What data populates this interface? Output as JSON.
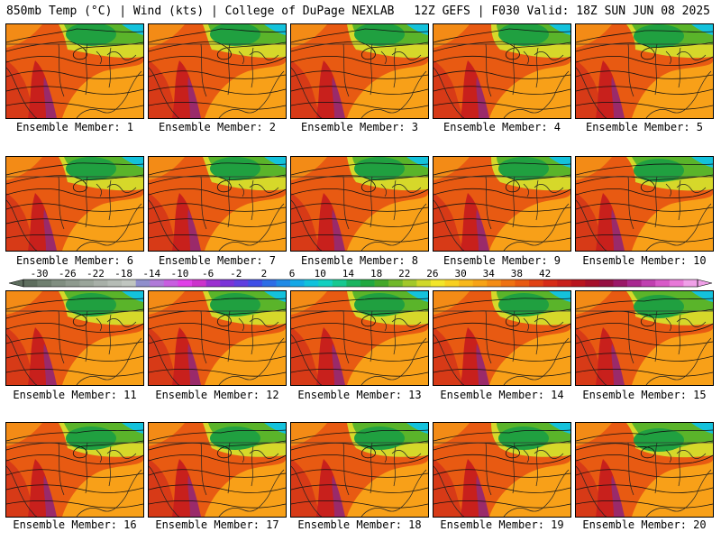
{
  "header": {
    "left": "850mb Temp (°C) | Wind (kts) | College of DuPage NEXLAB",
    "right": "12Z GEFS | F030 Valid: 18Z SUN JUN 08 2025"
  },
  "panels": [
    {
      "member": 1,
      "caption": "Ensemble Member: 1"
    },
    {
      "member": 2,
      "caption": "Ensemble Member: 2"
    },
    {
      "member": 3,
      "caption": "Ensemble Member: 3"
    },
    {
      "member": 4,
      "caption": "Ensemble Member: 4"
    },
    {
      "member": 5,
      "caption": "Ensemble Member: 5"
    },
    {
      "member": 6,
      "caption": "Ensemble Member: 6"
    },
    {
      "member": 7,
      "caption": "Ensemble Member: 7"
    },
    {
      "member": 8,
      "caption": "Ensemble Member: 8"
    },
    {
      "member": 9,
      "caption": "Ensemble Member: 9"
    },
    {
      "member": 10,
      "caption": "Ensemble Member: 10"
    },
    {
      "member": 11,
      "caption": "Ensemble Member: 11"
    },
    {
      "member": 12,
      "caption": "Ensemble Member: 12"
    },
    {
      "member": 13,
      "caption": "Ensemble Member: 13"
    },
    {
      "member": 14,
      "caption": "Ensemble Member: 14"
    },
    {
      "member": 15,
      "caption": "Ensemble Member: 15"
    },
    {
      "member": 16,
      "caption": "Ensemble Member: 16"
    },
    {
      "member": 17,
      "caption": "Ensemble Member: 17"
    },
    {
      "member": 18,
      "caption": "Ensemble Member: 18"
    },
    {
      "member": 19,
      "caption": "Ensemble Member: 19"
    },
    {
      "member": 20,
      "caption": "Ensemble Member: 20"
    }
  ],
  "colorbar": {
    "labels": [
      "-30",
      "-26",
      "-22",
      "-18",
      "-14",
      "-10",
      "-6",
      "-2",
      "2",
      "6",
      "10",
      "14",
      "18",
      "22",
      "26",
      "30",
      "34",
      "38",
      "42"
    ],
    "colors": [
      "#5e6e5e",
      "#6f7f6f",
      "#808e80",
      "#8e9a8e",
      "#9aa59a",
      "#a8b0a8",
      "#b5bcb5",
      "#c0c6c0",
      "#8f8fcc",
      "#b07ad8",
      "#c85ee0",
      "#e040e8",
      "#cc33cc",
      "#9b30d0",
      "#7a33d8",
      "#5f3fe0",
      "#3f4fe6",
      "#2d6de6",
      "#1f8ae6",
      "#14a8e6",
      "#10c2dc",
      "#12d0c0",
      "#16c890",
      "#1ab460",
      "#20a840",
      "#43a82a",
      "#71b82a",
      "#a2c82a",
      "#d0d82a",
      "#f2e62a",
      "#f8d020",
      "#f8b81a",
      "#f7a316",
      "#f48c14",
      "#ef7212",
      "#e85a12",
      "#e04214",
      "#d62c18",
      "#c8201c",
      "#b8141e",
      "#a50f2a",
      "#951042",
      "#9a1868",
      "#a82890",
      "#c040b0",
      "#d85ac8",
      "#e878d8",
      "#f0a0e8"
    ],
    "map_colors": {
      "hot_core": "#9a2a6a",
      "hot": "#c8201c",
      "warm": "#e85a12",
      "mild": "#f8a018",
      "cool": "#d6d82a",
      "cold": "#5ab42a",
      "colder": "#20a040",
      "cyan": "#14c2dc"
    }
  }
}
